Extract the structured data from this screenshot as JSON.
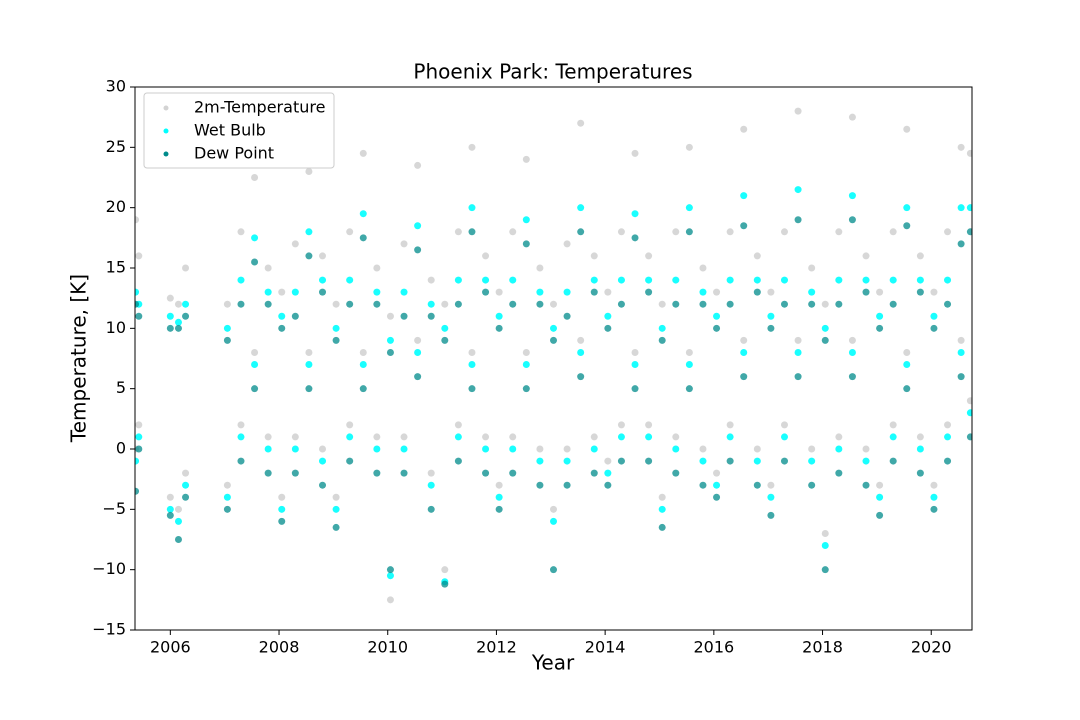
{
  "chart_data": {
    "type": "scatter",
    "title": "Phoenix Park: Temperatures",
    "x_label": "Year",
    "y_label": "Temperature, [K]",
    "x": [
      2005.36,
      2005.36,
      2005.42,
      2005.42,
      2006.0,
      2006.0,
      2006.15,
      2006.15,
      2006.28,
      2006.28,
      2007.05,
      2007.05,
      2007.3,
      2007.3,
      2007.55,
      2007.55,
      2007.8,
      2007.8,
      2008.05,
      2008.05,
      2008.3,
      2008.3,
      2008.55,
      2008.55,
      2008.8,
      2008.8,
      2009.05,
      2009.05,
      2009.3,
      2009.3,
      2009.55,
      2009.55,
      2009.8,
      2009.8,
      2010.05,
      2010.05,
      2010.3,
      2010.3,
      2010.55,
      2010.55,
      2010.8,
      2010.8,
      2011.05,
      2011.05,
      2011.3,
      2011.3,
      2011.55,
      2011.55,
      2011.8,
      2011.8,
      2012.05,
      2012.05,
      2012.3,
      2012.3,
      2012.55,
      2012.55,
      2012.8,
      2012.8,
      2013.05,
      2013.05,
      2013.3,
      2013.3,
      2013.55,
      2013.55,
      2013.8,
      2013.8,
      2014.05,
      2014.05,
      2014.3,
      2014.3,
      2014.55,
      2014.55,
      2014.8,
      2014.8,
      2015.05,
      2015.05,
      2015.3,
      2015.3,
      2015.55,
      2015.55,
      2015.8,
      2015.8,
      2016.05,
      2016.05,
      2016.3,
      2016.3,
      2016.55,
      2016.55,
      2016.8,
      2016.8,
      2017.05,
      2017.05,
      2017.3,
      2017.3,
      2017.55,
      2017.55,
      2017.8,
      2017.8,
      2018.05,
      2018.05,
      2018.3,
      2018.3,
      2018.55,
      2018.55,
      2018.8,
      2018.8,
      2019.05,
      2019.05,
      2019.3,
      2019.3,
      2019.55,
      2019.55,
      2019.8,
      2019.8,
      2020.05,
      2020.05,
      2020.3,
      2020.3,
      2020.55,
      2020.55,
      2020.72,
      2020.72
    ],
    "series": [
      {
        "name": "2m-Temperature",
        "color": "#d3d3d3",
        "values": [
          0,
          19,
          2,
          16,
          -4,
          12.5,
          -5,
          12,
          -2,
          15,
          -3,
          12,
          2,
          18,
          8,
          22.5,
          1,
          15,
          -4,
          13,
          1,
          17,
          8,
          23,
          0,
          16,
          -4,
          12,
          2,
          18,
          8,
          24.5,
          1,
          15,
          -12.5,
          11,
          1,
          17,
          9,
          23.5,
          -2,
          14,
          -10,
          12,
          2,
          18,
          8,
          25,
          1,
          16,
          -3,
          13,
          1,
          18,
          8,
          24,
          0,
          15,
          -5,
          12,
          0,
          17,
          9,
          27,
          1,
          16,
          -1,
          13,
          2,
          18,
          8,
          24.5,
          2,
          16,
          -4,
          12,
          1,
          18,
          8,
          25,
          0,
          15,
          -2,
          13,
          2,
          18,
          9,
          26.5,
          0,
          16,
          -3,
          13,
          2,
          18,
          9,
          28,
          0,
          15,
          -7,
          12,
          1,
          18,
          9,
          27.5,
          0,
          16,
          -3,
          13,
          2,
          18,
          8,
          26.5,
          1,
          16,
          -3,
          13,
          2,
          18,
          9,
          25,
          4,
          24.5
        ]
      },
      {
        "name": "Wet Bulb",
        "color": "#00ffff",
        "values": [
          -1,
          13,
          1,
          12,
          -5,
          11,
          -6,
          10.5,
          -3,
          12,
          -4,
          10,
          1,
          14,
          7,
          17.5,
          0,
          13,
          -5,
          11,
          0,
          13,
          7,
          18,
          -1,
          14,
          -5,
          10,
          1,
          14,
          7,
          19.5,
          0,
          13,
          -10.5,
          9,
          0,
          13,
          8,
          18.5,
          -3,
          12,
          -11,
          10,
          1,
          14,
          7,
          20,
          0,
          14,
          -4,
          11,
          0,
          14,
          7,
          19,
          -1,
          13,
          -6,
          10,
          -1,
          13,
          8,
          20,
          0,
          14,
          -2,
          11,
          1,
          14,
          7,
          19.5,
          1,
          14,
          -5,
          10,
          0,
          14,
          7,
          20,
          -1,
          13,
          -3,
          11,
          1,
          14,
          8,
          21,
          -1,
          14,
          -4,
          11,
          1,
          14,
          8,
          21.5,
          -1,
          13,
          -8,
          10,
          0,
          14,
          8,
          21,
          -1,
          14,
          -4,
          11,
          1,
          14,
          7,
          20,
          0,
          14,
          -4,
          11,
          1,
          14,
          8,
          20,
          3,
          20
        ]
      },
      {
        "name": "Dew Point",
        "color": "#008b8b",
        "values": [
          -3.5,
          12,
          0,
          11,
          -5.5,
          10,
          -7.5,
          10,
          -4,
          11,
          -5,
          9,
          -1,
          12,
          5,
          15.5,
          -2,
          12,
          -6,
          10,
          -2,
          11,
          5,
          16,
          -3,
          13,
          -6.5,
          9,
          -1,
          12,
          5,
          17.5,
          -2,
          12,
          -10,
          8,
          -2,
          11,
          6,
          16.5,
          -5,
          11,
          -11.2,
          9,
          -1,
          12,
          5,
          18,
          -2,
          13,
          -5,
          10,
          -2,
          12,
          5,
          17,
          -3,
          12,
          -10,
          9,
          -3,
          11,
          6,
          18,
          -2,
          13,
          -3,
          10,
          -1,
          12,
          5,
          17.5,
          -1,
          13,
          -6.5,
          9,
          -2,
          12,
          5,
          18,
          -3,
          12,
          -4,
          10,
          -1,
          12,
          6,
          18.5,
          -3,
          13,
          -5.5,
          10,
          -1,
          12,
          6,
          19,
          -3,
          12,
          -10,
          9,
          -2,
          12,
          6,
          19,
          -3,
          13,
          -5.5,
          10,
          -1,
          12,
          5,
          18.5,
          -2,
          13,
          -5,
          10,
          -1,
          12,
          6,
          17,
          1,
          18
        ]
      }
    ],
    "xlim": [
      2005.35,
      2020.75
    ],
    "xticks": [
      2006,
      2008,
      2010,
      2012,
      2014,
      2016,
      2018,
      2020
    ],
    "ylim": [
      -15,
      30
    ],
    "yticks": [
      {
        "value": -15,
        "label": "−15"
      },
      {
        "value": -10,
        "label": "−10"
      },
      {
        "value": -5,
        "label": "−5"
      },
      0,
      5,
      10,
      15,
      20,
      25,
      30
    ],
    "legend": "upper left",
    "grid": false
  }
}
